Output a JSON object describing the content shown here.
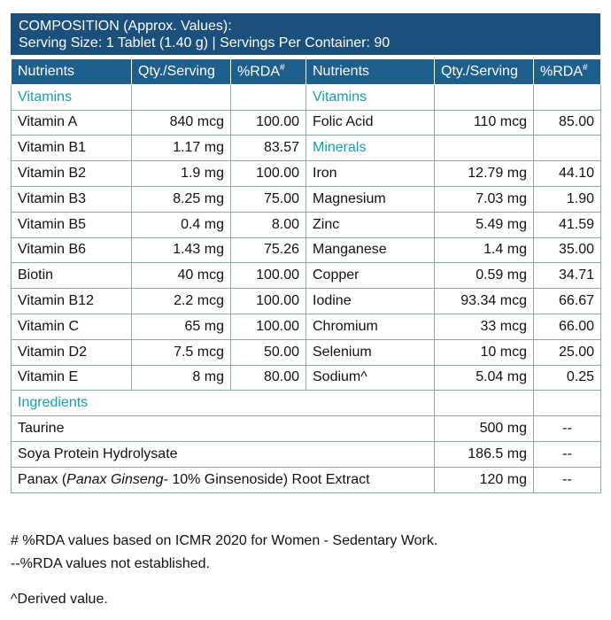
{
  "header": {
    "title": "COMPOSITION (Approx. Values):",
    "serving": "Serving Size: 1 Tablet (1.40 g) | Servings Per Container: 90"
  },
  "columns": [
    {
      "text": "Nutrients"
    },
    {
      "text": "Qty./Serving"
    },
    {
      "text": "%RDA",
      "sup": "#"
    }
  ],
  "left": [
    {
      "section": "Vitamins"
    },
    {
      "name": "Vitamin A",
      "qty": "840 mcg",
      "rda": "100.00"
    },
    {
      "name": "Vitamin B1",
      "qty": "1.17 mg",
      "rda": "83.57"
    },
    {
      "name": "Vitamin B2",
      "qty": "1.9 mg",
      "rda": "100.00"
    },
    {
      "name": "Vitamin B3",
      "qty": "8.25 mg",
      "rda": "75.00"
    },
    {
      "name": "Vitamin B5",
      "qty": "0.4 mg",
      "rda": "8.00"
    },
    {
      "name": "Vitamin B6",
      "qty": "1.43 mg",
      "rda": "75.26"
    },
    {
      "name": "Biotin",
      "qty": "40 mcg",
      "rda": "100.00"
    },
    {
      "name": "Vitamin B12",
      "qty": "2.2 mcg",
      "rda": "100.00"
    },
    {
      "name": "Vitamin C",
      "qty": "65 mg",
      "rda": "100.00"
    },
    {
      "name": "Vitamin D2",
      "qty": "7.5 mcg",
      "rda": "50.00"
    },
    {
      "name": "Vitamin E",
      "qty": "8 mg",
      "rda": "80.00"
    }
  ],
  "right": [
    {
      "section": "Vitamins"
    },
    {
      "name": "Folic Acid",
      "qty": "110 mcg",
      "rda": "85.00"
    },
    {
      "section": "Minerals"
    },
    {
      "name": "Iron",
      "qty": "12.79 mg",
      "rda": "44.10"
    },
    {
      "name": "Magnesium",
      "qty": "7.03 mg",
      "rda": "1.90"
    },
    {
      "name": "Zinc",
      "qty": "5.49 mg",
      "rda": "41.59"
    },
    {
      "name": "Manganese",
      "qty": "1.4 mg",
      "rda": "35.00"
    },
    {
      "name": "Copper",
      "qty": "0.59 mg",
      "rda": "34.71"
    },
    {
      "name": "Iodine",
      "qty": "93.34 mcg",
      "rda": "66.67"
    },
    {
      "name": "Chromium",
      "qty": "33 mcg",
      "rda": "66.00"
    },
    {
      "name": "Selenium",
      "qty": "10 mcg",
      "rda": "25.00"
    },
    {
      "name": "Sodium^",
      "qty": "5.04 mg",
      "rda": "0.25"
    }
  ],
  "ingredients": {
    "section": "Ingredients",
    "items": [
      {
        "name": [
          "Taurine"
        ],
        "qty": "500 mg",
        "rda": "--"
      },
      {
        "name": [
          "Soya Protein Hydrolysate"
        ],
        "qty": "186.5 mg",
        "rda": "--"
      },
      {
        "name": [
          "Panax (",
          "Panax Ginseng",
          "- 10% Ginsenoside) Root Extract"
        ],
        "qty": "120 mg",
        "rda": "--"
      }
    ]
  },
  "footnotes": [
    "# %RDA values based on ICMR 2020 for Women - Sedentary Work.",
    "--%RDA values not established.",
    "^Derived value."
  ]
}
